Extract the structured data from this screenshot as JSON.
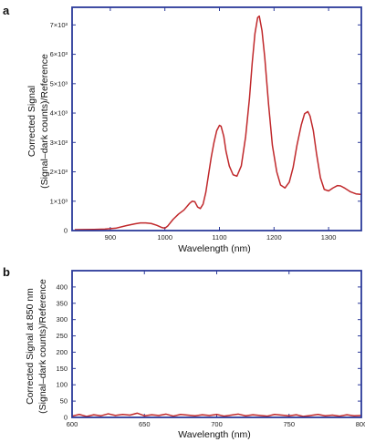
{
  "colors": {
    "frame": "#2b3a9a",
    "line": "#c0282b",
    "text": "#111111"
  },
  "chart_data": [
    {
      "panel_label": "a",
      "type": "line",
      "xlabel": "Wavelength (nm)",
      "ylabel_line1": "Corrected Signal",
      "ylabel_line2": "(Signal–dark counts)/Reference",
      "xlim": [
        830,
        1360
      ],
      "ylim": [
        0,
        7600
      ],
      "xticks": [
        900,
        1000,
        1100,
        1200,
        1300
      ],
      "xtick_labels": [
        "900",
        "1000",
        "1100",
        "1200",
        "1300"
      ],
      "yticks": [
        0,
        1000,
        2000,
        3000,
        4000,
        5000,
        6000,
        7000
      ],
      "ytick_labels": [
        "0",
        "1×10³",
        "2×10³",
        "3×10³",
        "4×10³",
        "5×10³",
        "6×10³",
        "7×10³"
      ],
      "grid": false,
      "series": [
        {
          "x": [
            835,
            850,
            870,
            890,
            910,
            930,
            945,
            955,
            965,
            975,
            985,
            995,
            1000,
            1005,
            1015,
            1025,
            1035,
            1045,
            1050,
            1055,
            1060,
            1065,
            1070,
            1075,
            1080,
            1085,
            1090,
            1095,
            1100,
            1103,
            1108,
            1112,
            1118,
            1125,
            1132,
            1140,
            1148,
            1155,
            1160,
            1165,
            1170,
            1173,
            1178,
            1183,
            1190,
            1197,
            1205,
            1212,
            1220,
            1228,
            1235,
            1242,
            1250,
            1256,
            1262,
            1266,
            1272,
            1278,
            1285,
            1292,
            1300,
            1308,
            1316,
            1322,
            1330,
            1340,
            1350,
            1360
          ],
          "y": [
            30,
            35,
            40,
            50,
            80,
            170,
            230,
            260,
            260,
            240,
            180,
            100,
            80,
            150,
            380,
            560,
            700,
            920,
            1000,
            980,
            800,
            750,
            900,
            1300,
            1900,
            2500,
            3000,
            3400,
            3580,
            3550,
            3200,
            2700,
            2200,
            1900,
            1850,
            2200,
            3200,
            4500,
            5700,
            6700,
            7250,
            7300,
            6800,
            5900,
            4300,
            2900,
            2000,
            1550,
            1450,
            1650,
            2150,
            2900,
            3600,
            3980,
            4050,
            3900,
            3400,
            2600,
            1800,
            1400,
            1350,
            1450,
            1530,
            1520,
            1440,
            1320,
            1250,
            1230
          ]
        }
      ]
    },
    {
      "panel_label": "b",
      "type": "line",
      "xlabel": "Wavelength (nm)",
      "ylabel_line1": "Corrected Signal at 850 nm",
      "ylabel_line2": "(Signal–dark counts)/Reference",
      "xlim": [
        600,
        800
      ],
      "ylim": [
        0,
        450
      ],
      "xticks": [
        600,
        650,
        700,
        750,
        800
      ],
      "xtick_labels": [
        "600",
        "650",
        "700",
        "750",
        "800"
      ],
      "yticks": [
        0,
        50,
        100,
        150,
        200,
        250,
        300,
        350,
        400
      ],
      "ytick_labels": [
        "0",
        "50",
        "100",
        "150",
        "200",
        "250",
        "300",
        "350",
        "400"
      ],
      "grid": false,
      "series": [
        {
          "x": [
            600,
            605,
            610,
            615,
            620,
            625,
            630,
            635,
            640,
            645,
            650,
            655,
            660,
            665,
            670,
            675,
            680,
            685,
            690,
            695,
            700,
            705,
            710,
            715,
            720,
            725,
            730,
            735,
            740,
            745,
            750,
            755,
            760,
            765,
            770,
            775,
            780,
            785,
            790,
            795,
            800
          ],
          "y": [
            4,
            9,
            3,
            8,
            5,
            11,
            6,
            9,
            7,
            13,
            5,
            8,
            6,
            10,
            4,
            9,
            7,
            5,
            8,
            6,
            9,
            4,
            7,
            10,
            5,
            8,
            6,
            4,
            9,
            7,
            5,
            8,
            3,
            6,
            9,
            5,
            7,
            4,
            8,
            5,
            6
          ]
        }
      ]
    }
  ]
}
